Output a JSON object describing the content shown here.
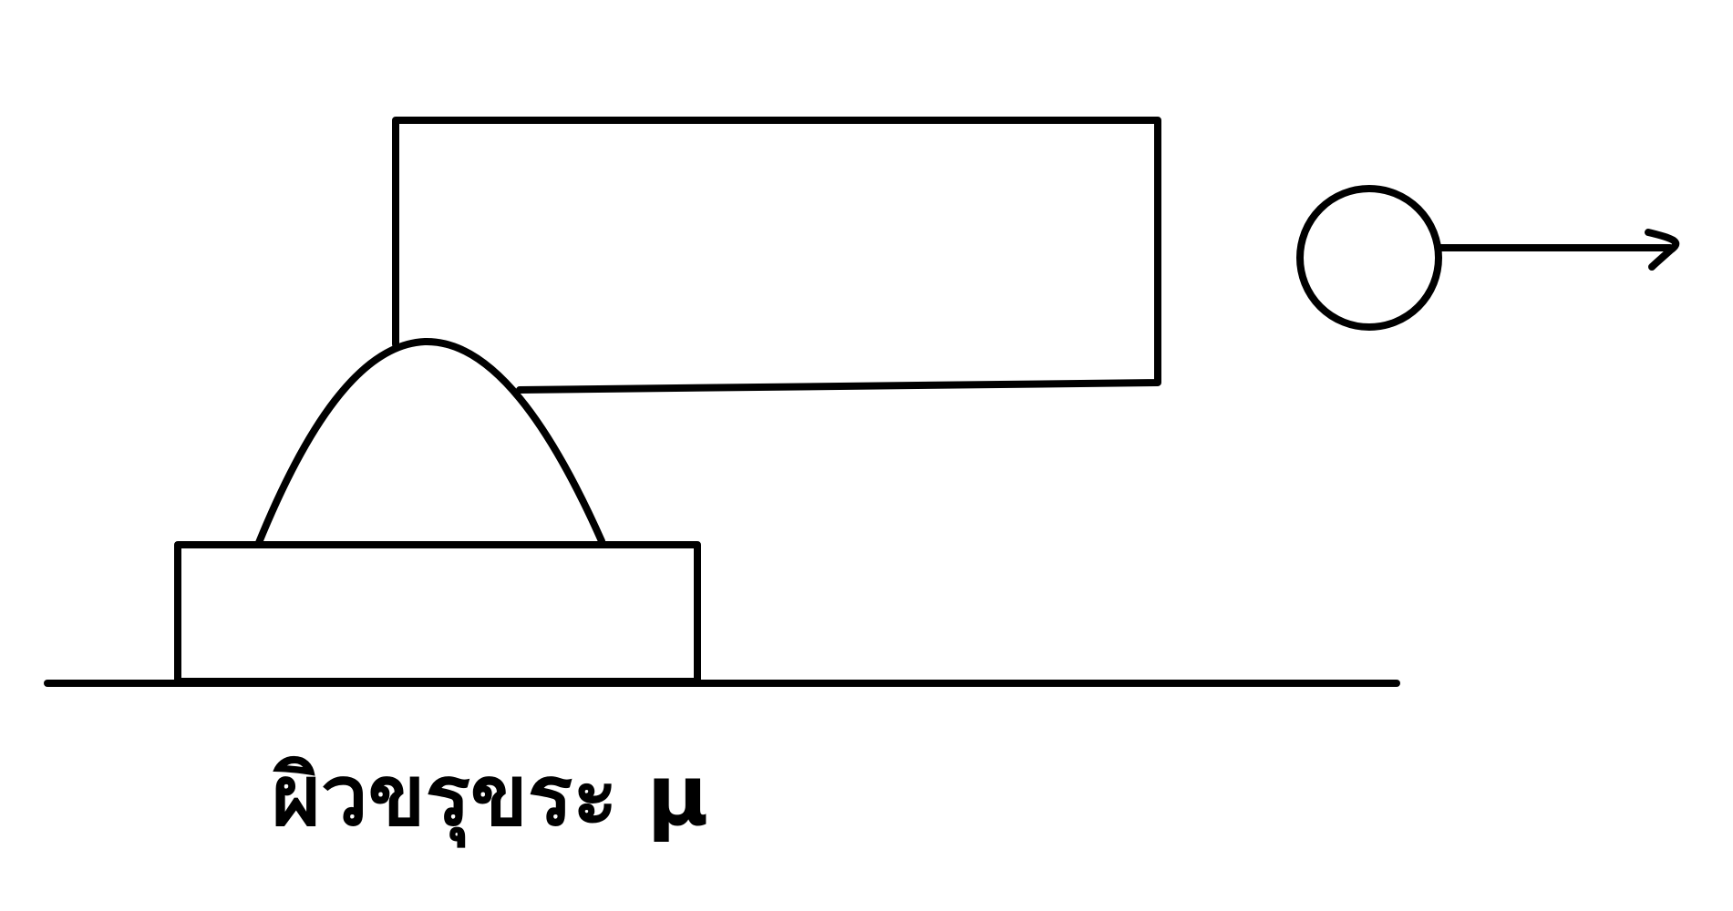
{
  "diagram": {
    "label": {
      "text": "ผิวขรุขระ μ"
    },
    "colors": {
      "stroke": "#000000",
      "ball_fill": "#e6e6e6",
      "background": "#ffffff"
    }
  }
}
